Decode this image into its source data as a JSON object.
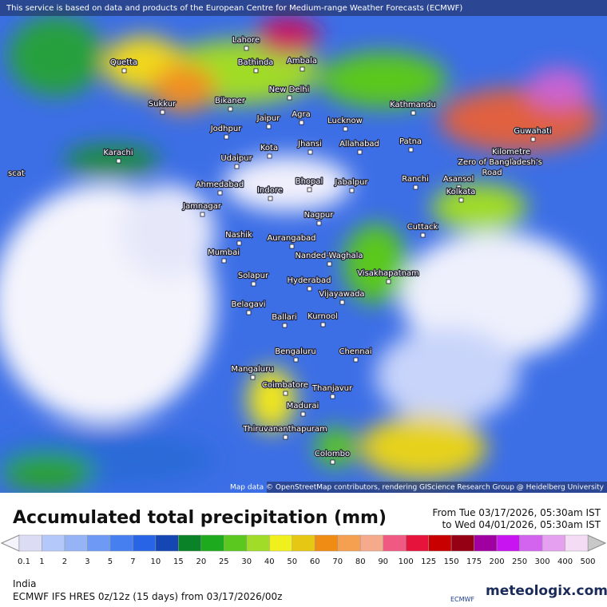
{
  "header": {
    "notice": "This service is based on data and products of the European Centre for Medium-range Weather Forecasts (ECMWF)"
  },
  "map": {
    "cities": [
      "Lahore",
      "Quetta",
      "Bathinda",
      "Ambala",
      "New Delhi",
      "Sukkur",
      "Bikaner",
      "Kathmandu",
      "Jaipur",
      "Agra",
      "Lucknow",
      "Guwahati",
      "Jodhpur",
      "Karachi",
      "Kota",
      "Jhansi",
      "Allahabad",
      "Patna",
      "Kilometre",
      "Zero of Bangladesh's",
      "Road",
      "Udaipur",
      "Ranchi",
      "Asansol",
      "Ahmedabad",
      "Bhopal",
      "Jabalpur",
      "Indore",
      "Kolkata",
      "Jamnagar",
      "Nagpur",
      "Cuttack",
      "Nashik",
      "Aurangabad",
      "Mumbai",
      "Nanded-Waghala",
      "Visakhapatnam",
      "Solapur",
      "Hyderabad",
      "Vijayawada",
      "Belagavi",
      "Ballari",
      "Kurnool",
      "Bengaluru",
      "Chennai",
      "Mangaluru",
      "Coimbatore",
      "Thanjavur",
      "Madurai",
      "Thiruvananthapuram",
      "Colombo",
      "scat"
    ],
    "attribution": "Map data © OpenStreetMap contributors, rendering GIScience Research Group @ Heidelberg University"
  },
  "legend": {
    "title": "Accumulated total precipitation (mm)",
    "period_from": "From Tue 03/17/2026, 05:30am IST",
    "period_to": "to Wed 04/01/2026, 05:30am IST",
    "labels": [
      0.1,
      1,
      2,
      3,
      5,
      7,
      10,
      15,
      20,
      25,
      30,
      40,
      50,
      60,
      70,
      80,
      90,
      100,
      125,
      150,
      175,
      200,
      250,
      300,
      400,
      500
    ],
    "colors": [
      "#dcdcf5",
      "#b4c8fa",
      "#96b4f5",
      "#6e9af5",
      "#4680f0",
      "#2864e6",
      "#1446b4",
      "#0a8228",
      "#1eaa1e",
      "#5ac81e",
      "#a0dc28",
      "#f0f01e",
      "#e6c814",
      "#f08c14",
      "#f5a050",
      "#f5aa8c",
      "#f05a82",
      "#e6143c",
      "#c80000",
      "#960014",
      "#a000a0",
      "#c814f0",
      "#d264f0",
      "#e6a0f0",
      "#f5dcf5"
    ]
  },
  "footer": {
    "region": "India",
    "model": "ECMWF IFS HRES 0z/12z (15 days) from 03/17/2026/00z",
    "ecmwf": "ECMWF",
    "brand": "meteologix.com"
  }
}
